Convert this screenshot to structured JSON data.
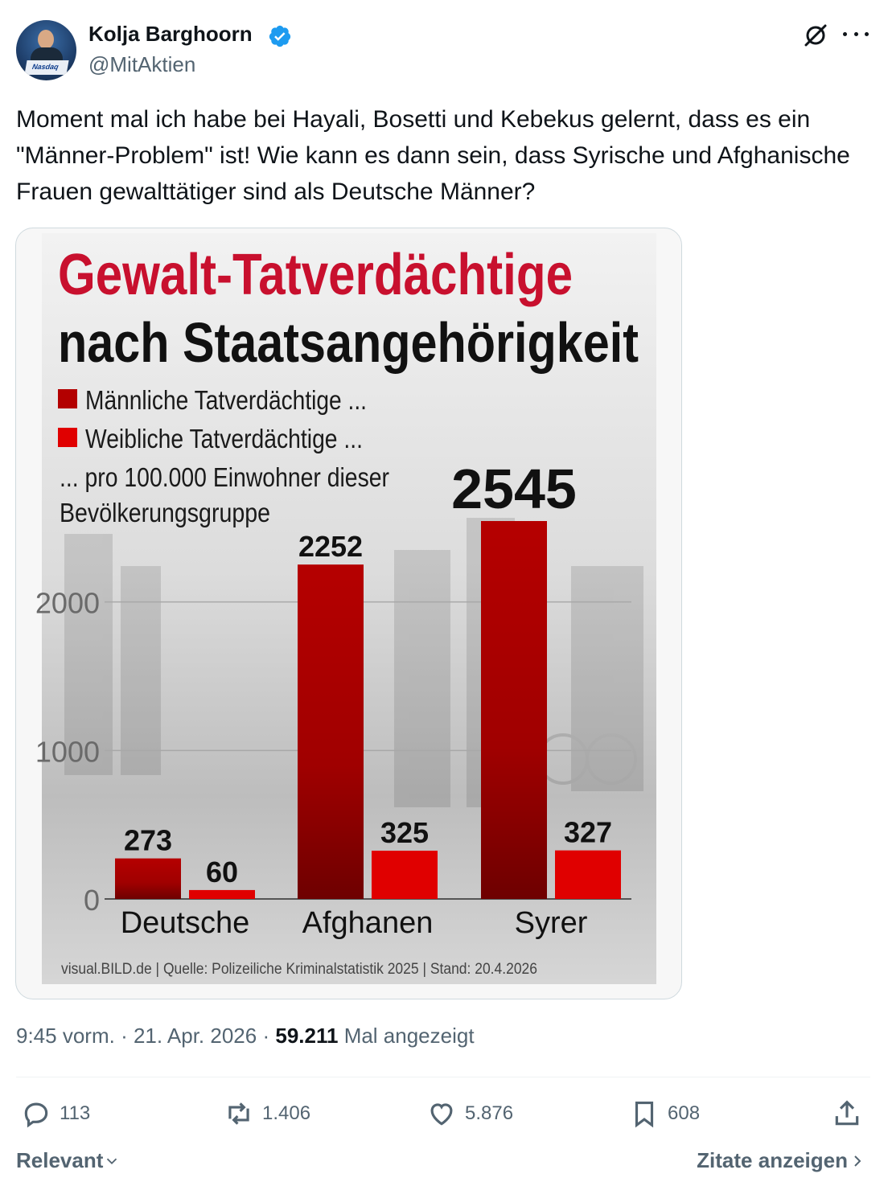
{
  "author": {
    "name": "Kolja Barghoorn",
    "handle": "@MitAktien",
    "avatar_desk_text": "Nasdaq"
  },
  "tweet": {
    "text": "Moment mal ich habe bei Hayali, Bosetti und Kebekus gelernt, dass es ein \"Männer-Problem\" ist! Wie kann es dann sein, dass Syrische und Afghanische Frauen gewalttätiger sind als Deutsche Männer?"
  },
  "meta": {
    "time": "9:45 vorm.",
    "date": "21. Apr. 2026",
    "views": "59.211",
    "views_label": "Mal angezeigt",
    "separator": "·"
  },
  "actions": {
    "replies": "113",
    "reposts": "1.406",
    "likes": "5.876",
    "bookmarks": "608"
  },
  "footer": {
    "sort_label": "Relevant",
    "quotes_label": "Zitate anzeigen"
  },
  "icons": [
    "verified-badge-icon",
    "grok-icon",
    "more-icon",
    "reply-icon",
    "repost-icon",
    "like-icon",
    "bookmark-icon",
    "share-icon",
    "chevron-down-icon",
    "chevron-right-icon"
  ],
  "colors": {
    "male": "#b30000",
    "female": "#e00000",
    "verified": "#1d9bf0",
    "title_red": "#c8102e"
  },
  "chart_data": {
    "type": "bar",
    "title": "Gewalt-Tatverdächtige",
    "subtitle": "nach Staatsangehörigkeit",
    "legend": [
      "Männliche Tatverdächtige ...",
      "Weibliche Tatverdächtige ..."
    ],
    "note_line1": "... pro 100.000 Einwohner dieser",
    "note_line2": "Bevölkerungsgruppe",
    "categories": [
      "Deutsche",
      "Afghanen",
      "Syrer"
    ],
    "series": [
      {
        "name": "Männliche Tatverdächtige ...",
        "values": [
          273,
          2252,
          2545
        ]
      },
      {
        "name": "Weibliche Tatverdächtige ...",
        "values": [
          60,
          325,
          327
        ]
      }
    ],
    "value_labels": [
      [
        "273",
        "2252",
        "2545"
      ],
      [
        "60",
        "325",
        "327"
      ]
    ],
    "yticks": [
      "0",
      "1000",
      "2000"
    ],
    "ylim": [
      0,
      2545
    ],
    "grid": true,
    "legend_position": "top-left",
    "source": "visual.BILD.de | Quelle: Polizeiliche Kriminalstatistik 2025 | Stand: 20.4.2026"
  }
}
